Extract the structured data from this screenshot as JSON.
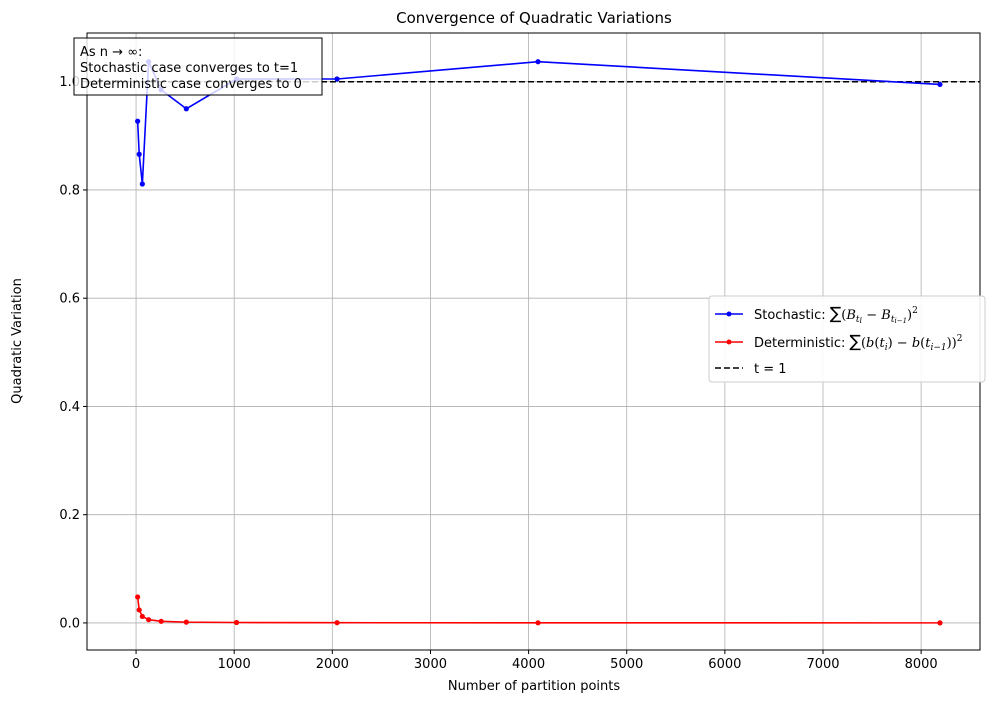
{
  "chart_data": {
    "type": "line",
    "title": "Convergence of Quadratic Variations",
    "xlabel": "Number of partition points",
    "ylabel": "Quadratic Variation",
    "xlim": [
      -500,
      8600
    ],
    "ylim": [
      -0.05,
      1.09
    ],
    "xticks": [
      0,
      1000,
      2000,
      3000,
      4000,
      5000,
      6000,
      7000,
      8000
    ],
    "xtick_labels": [
      "0",
      "1000",
      "2000",
      "3000",
      "4000",
      "5000",
      "6000",
      "7000",
      "8000"
    ],
    "yticks": [
      0.0,
      0.2,
      0.4,
      0.6,
      0.8,
      1.0
    ],
    "ytick_labels": [
      "0.0",
      "0.2",
      "0.4",
      "0.6",
      "0.8",
      "1.0"
    ],
    "grid": true,
    "legend_position": "center-right",
    "series": [
      {
        "name": "Stochastic",
        "legend_prefix": "Stochastic: ",
        "color": "#0000ff",
        "x": [
          16,
          32,
          64,
          128,
          256,
          512,
          1024,
          2048,
          4096,
          8192
        ],
        "y": [
          0.927,
          0.866,
          0.811,
          1.037,
          0.985,
          0.95,
          1.005,
          1.005,
          1.037,
          0.995
        ]
      },
      {
        "name": "Deterministic",
        "legend_prefix": "Deterministic: ",
        "color": "#ff0000",
        "x": [
          16,
          32,
          64,
          128,
          256,
          512,
          1024,
          2048,
          4096,
          8192
        ],
        "y": [
          0.048,
          0.024,
          0.012,
          0.006,
          0.003,
          0.0015,
          0.0008,
          0.0004,
          0.0002,
          0.0001
        ]
      }
    ],
    "reference_line": {
      "label": "t = 1",
      "y": 1.0,
      "color": "#000000",
      "style": "dashed"
    },
    "annotation": {
      "lines": [
        "As n → ∞:",
        "Stochastic case converges to t=1",
        "Deterministic case converges to 0"
      ]
    }
  }
}
